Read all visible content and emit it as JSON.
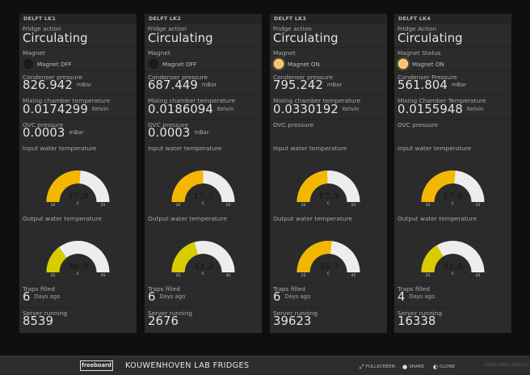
{
  "board_title": "KOUWENHOVEN LAB FRIDGES",
  "logo_text": "freeboard",
  "footer_buttons": [
    {
      "icon": "expand-icon",
      "label": "FULLSCREEN"
    },
    {
      "icon": "user-icon",
      "label": "SHARE"
    },
    {
      "icon": "contrast-icon",
      "label": "CLONE"
    }
  ],
  "dev_console_label": "DEVELOPER CONSOLE",
  "colors": {
    "gauge_track": "#ededed",
    "gauge_fill_input": "#f5b800",
    "gauge_fill_output_low": "#d8cc00",
    "gauge_fill_output_high": "#f2b700",
    "light_on": "#f7c26a"
  },
  "panels": [
    {
      "title": "DELFT LK1",
      "fridge_action_label": "Fridge action",
      "fridge_action": "Circulating",
      "magnet_label": "Magnet",
      "magnet_text": "Magnet OFF",
      "magnet_on": false,
      "condenser_label": "Condenser pressure",
      "condenser_value": "826.942",
      "condenser_unit": "mBar",
      "mixing_label": "Mixing chamber temperature",
      "mixing_value": "0.0174299",
      "mixing_unit": "Kelvin",
      "ovc_label": "OVC pressure",
      "ovc_value": "0.0003",
      "ovc_unit": "mBar",
      "input_label": "Input water temperature",
      "input_gauge": {
        "value": "17.9",
        "unit": "C",
        "min": "10",
        "max": "25",
        "num": 17.9,
        "lo": 10,
        "hi": 25
      },
      "output_label": "Output water temperature",
      "output_gauge": {
        "value": "30.9",
        "unit": "C",
        "min": "25",
        "max": "45",
        "num": 30.9,
        "lo": 25,
        "hi": 45
      },
      "traps_label": "Traps filled",
      "traps_value": "6",
      "traps_unit": "Days ago",
      "server_label": "Server running",
      "server_value": "8539"
    },
    {
      "title": "DELFT LK2",
      "fridge_action_label": "Fridge action",
      "fridge_action": "Circulating",
      "magnet_label": "Magnet",
      "magnet_text": "Magnet OFF",
      "magnet_on": false,
      "condenser_label": "Condenser pressure",
      "condenser_value": "687.449",
      "condenser_unit": "mBar",
      "mixing_label": "Mixing chamber temperature",
      "mixing_value": "0.0186094",
      "mixing_unit": "Kelvin",
      "ovc_label": "OVC pressure",
      "ovc_value": "0.0003",
      "ovc_unit": "mBar",
      "input_label": "Input water temperature",
      "input_gauge": {
        "value": "17.5",
        "unit": "C",
        "min": "10",
        "max": "25",
        "num": 17.5,
        "lo": 10,
        "hi": 25
      },
      "output_label": "Output water temperature",
      "output_gauge": {
        "value": "33.2",
        "unit": "C",
        "min": "25",
        "max": "45",
        "num": 33.2,
        "lo": 25,
        "hi": 45
      },
      "traps_label": "Traps filled",
      "traps_value": "6",
      "traps_unit": "Days ago",
      "server_label": "Server running",
      "server_value": "2676"
    },
    {
      "title": "DELFT LK3",
      "fridge_action_label": "Fridge action",
      "fridge_action": "Circulating",
      "magnet_label": "Magnet",
      "magnet_text": "Magnet ON",
      "magnet_on": true,
      "condenser_label": "Condenser pressure",
      "condenser_value": "795.242",
      "condenser_unit": "mBar",
      "mixing_label": "Mixing chamber temperature",
      "mixing_value": "0.0330192",
      "mixing_unit": "Kelvin",
      "ovc_label": "OVC pressure",
      "ovc_value": "",
      "ovc_unit": "",
      "input_label": "Input water temperature",
      "input_gauge": {
        "value": "17.3",
        "unit": "C",
        "min": "10",
        "max": "25",
        "num": 17.3,
        "lo": 10,
        "hi": 25
      },
      "output_label": "Output water temperature",
      "output_gauge": {
        "value": "35.7",
        "unit": "C",
        "min": "25",
        "max": "45",
        "num": 35.7,
        "lo": 25,
        "hi": 45
      },
      "traps_label": "Traps filled",
      "traps_value": "6",
      "traps_unit": "Days ago",
      "server_label": "Server running",
      "server_value": "39623"
    },
    {
      "title": "DELFT LK4",
      "fridge_action_label": "Fridge Action",
      "fridge_action": "Circulating",
      "magnet_label": "Magnet Status",
      "magnet_text": "Magnet ON",
      "magnet_on": true,
      "condenser_label": "Condenser Pressure",
      "condenser_value": "561.804",
      "condenser_unit": "mBar",
      "mixing_label": "Mixing Chamber Temperature",
      "mixing_value": "0.0155948",
      "mixing_unit": "Kelvin",
      "ovc_label": "OVC pressure",
      "ovc_value": "",
      "ovc_unit": "",
      "input_label": "Input water temperature",
      "input_gauge": {
        "value": "17.9",
        "unit": "C",
        "min": "10",
        "max": "25",
        "num": 17.9,
        "lo": 10,
        "hi": 25
      },
      "output_label": "Output water temperature",
      "output_gauge": {
        "value": "31.6",
        "unit": "C",
        "min": "25",
        "max": "45",
        "num": 31.6,
        "lo": 25,
        "hi": 45
      },
      "traps_label": "Traps filled",
      "traps_value": "4",
      "traps_unit": "Days ago",
      "server_label": "Server running",
      "server_value": "16338"
    }
  ]
}
